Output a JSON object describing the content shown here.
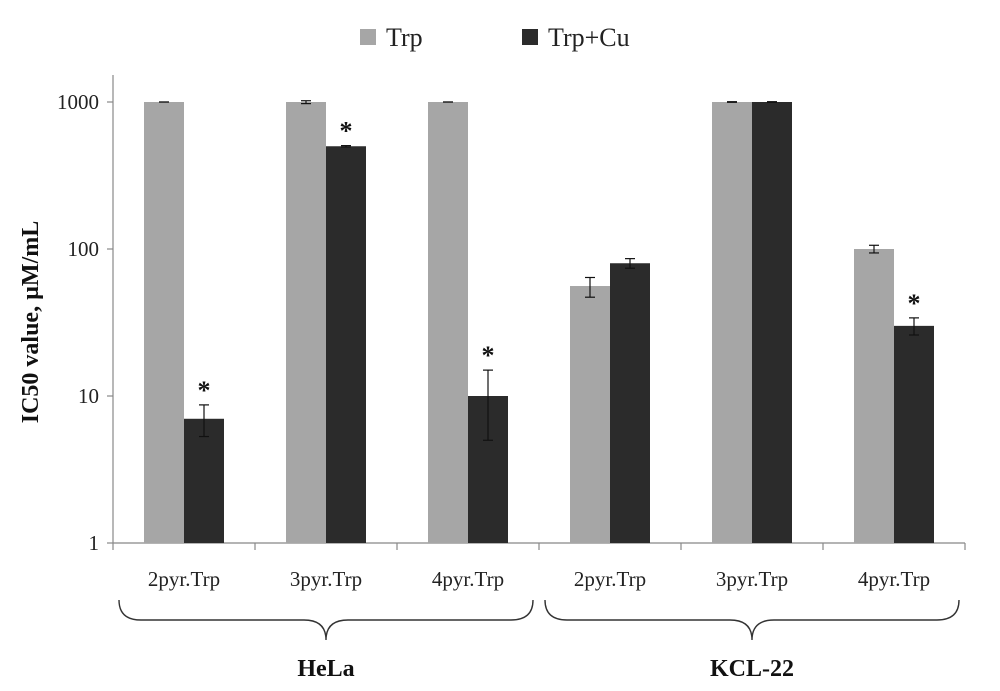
{
  "chart_data": {
    "type": "bar",
    "ylabel": "IC50 value, µM/mL",
    "yscale": "log",
    "ylim": [
      1,
      1000
    ],
    "yticks": [
      1,
      10,
      100,
      1000
    ],
    "legend_position": "top",
    "groups": [
      {
        "label": "HeLa",
        "categories": [
          "2pyr.Trp",
          "3pyr.Trp",
          "4pyr.Trp"
        ]
      },
      {
        "label": "KCL-22",
        "categories": [
          "2pyr.Trp",
          "3pyr.Trp",
          "4pyr.Trp"
        ]
      }
    ],
    "categories": [
      "2pyr.Trp",
      "3pyr.Trp",
      "4pyr.Trp",
      "2pyr.Trp",
      "3pyr.Trp",
      "4pyr.Trp"
    ],
    "series": [
      {
        "name": "Trp",
        "color": "#a6a6a6",
        "values": [
          1000,
          1000,
          1000,
          56,
          1000,
          100
        ],
        "errors": [
          [
            1000,
            1000
          ],
          [
            975,
            1020
          ],
          [
            1000,
            1000
          ],
          [
            47,
            64
          ],
          [
            995,
            1005
          ],
          [
            94,
            106
          ]
        ],
        "significant": [
          false,
          false,
          false,
          false,
          false,
          false
        ]
      },
      {
        "name": "Trp+Cu",
        "color": "#2b2b2b",
        "values": [
          7,
          500,
          10,
          80,
          1000,
          30
        ],
        "errors": [
          [
            5.3,
            8.7
          ],
          [
            495,
            505
          ],
          [
            5,
            15
          ],
          [
            74,
            86
          ],
          [
            995,
            1005
          ],
          [
            26,
            34
          ]
        ],
        "significant": [
          true,
          true,
          true,
          false,
          false,
          true
        ]
      }
    ],
    "annotation_symbol": "*"
  }
}
